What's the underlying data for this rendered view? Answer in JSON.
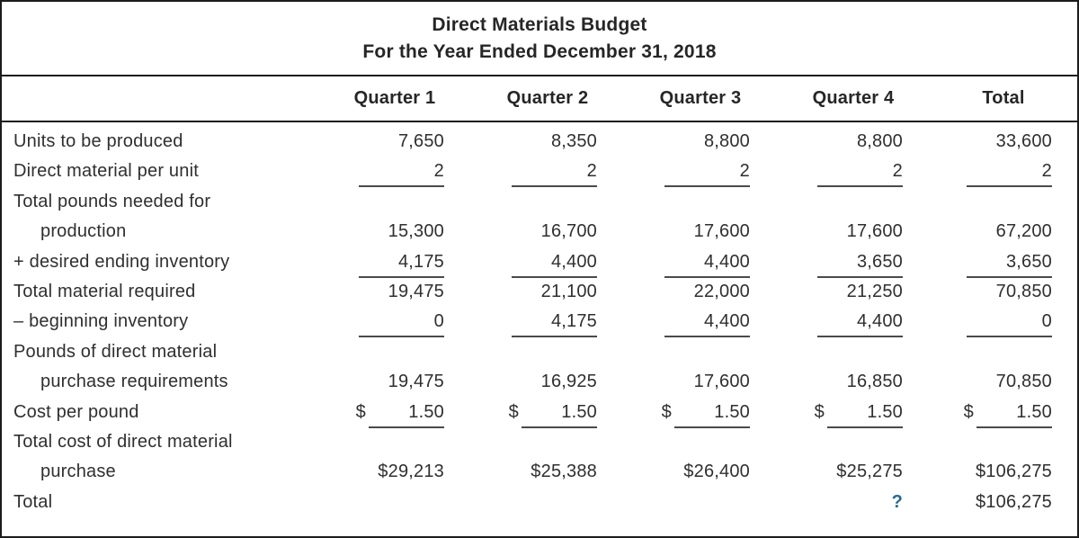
{
  "title": {
    "line1": "Direct Materials Budget",
    "line2": "For the Year Ended December 31, 2018"
  },
  "columns": [
    "",
    "Quarter 1",
    "Quarter 2",
    "Quarter 3",
    "Quarter 4",
    "Total"
  ],
  "rows": [
    {
      "label": "Units to be produced",
      "indent": false,
      "cells": [
        {
          "v": "7,650"
        },
        {
          "v": "8,350"
        },
        {
          "v": "8,800"
        },
        {
          "v": "8,800"
        },
        {
          "v": "33,600"
        }
      ]
    },
    {
      "label": "Direct material per unit",
      "indent": false,
      "cells": [
        {
          "v": "2",
          "u": true
        },
        {
          "v": "2",
          "u": true
        },
        {
          "v": "2",
          "u": true
        },
        {
          "v": "2",
          "u": true
        },
        {
          "v": "2",
          "u": true
        }
      ]
    },
    {
      "label": "Total pounds needed for",
      "indent": false,
      "cells": [
        {},
        {},
        {},
        {},
        {}
      ]
    },
    {
      "label": "production",
      "indent": true,
      "cells": [
        {
          "v": "15,300"
        },
        {
          "v": "16,700"
        },
        {
          "v": "17,600"
        },
        {
          "v": "17,600"
        },
        {
          "v": "67,200"
        }
      ]
    },
    {
      "label": "+ desired ending inventory",
      "indent": false,
      "cells": [
        {
          "v": "4,175",
          "u": true
        },
        {
          "v": "4,400",
          "u": true
        },
        {
          "v": "4,400",
          "u": true
        },
        {
          "v": "3,650",
          "u": true
        },
        {
          "v": "3,650",
          "u": true
        }
      ]
    },
    {
      "label": "Total material required",
      "indent": false,
      "cells": [
        {
          "v": "19,475"
        },
        {
          "v": "21,100"
        },
        {
          "v": "22,000"
        },
        {
          "v": "21,250"
        },
        {
          "v": "70,850"
        }
      ]
    },
    {
      "label": "– beginning inventory",
      "indent": false,
      "cells": [
        {
          "v": "0",
          "u": true
        },
        {
          "v": "4,175",
          "u": true
        },
        {
          "v": "4,400",
          "u": true
        },
        {
          "v": "4,400",
          "u": true
        },
        {
          "v": "0",
          "u": true
        }
      ]
    },
    {
      "label": "Pounds of direct material",
      "indent": false,
      "cells": [
        {},
        {},
        {},
        {},
        {}
      ]
    },
    {
      "label": "purchase requirements",
      "indent": true,
      "cells": [
        {
          "v": "19,475"
        },
        {
          "v": "16,925"
        },
        {
          "v": "17,600"
        },
        {
          "v": "16,850"
        },
        {
          "v": "70,850"
        }
      ]
    },
    {
      "label": "Cost per pound",
      "indent": false,
      "cells": [
        {
          "v": "1.50",
          "u": true,
          "cur": "$"
        },
        {
          "v": "1.50",
          "u": true,
          "cur": "$"
        },
        {
          "v": "1.50",
          "u": true,
          "cur": "$"
        },
        {
          "v": "1.50",
          "u": true,
          "cur": "$"
        },
        {
          "v": "1.50",
          "u": true,
          "cur": "$"
        }
      ]
    },
    {
      "label": "Total cost of direct material",
      "indent": false,
      "cells": [
        {},
        {},
        {},
        {},
        {}
      ]
    },
    {
      "label": "purchase",
      "indent": true,
      "cells": [
        {
          "v": "$29,213"
        },
        {
          "v": "$25,388"
        },
        {
          "v": "$26,400"
        },
        {
          "v": "$25,275"
        },
        {
          "v": "$106,275"
        }
      ]
    },
    {
      "label": "Total",
      "indent": false,
      "cells": [
        {},
        {},
        {},
        {
          "v": "?",
          "accent": true
        },
        {
          "v": "$106,275"
        }
      ]
    }
  ],
  "colors": {
    "accent": "#27688f",
    "border": "#1c1c1c",
    "text": "#2f2f2f"
  }
}
